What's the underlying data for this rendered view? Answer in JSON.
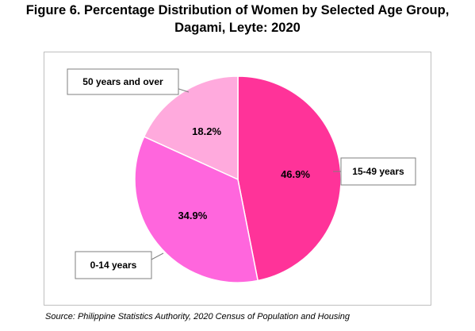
{
  "title": {
    "line1": "Figure 6. Percentage Distribution of Women by Selected Age Group,",
    "line2": "Dagami, Leyte: 2020"
  },
  "source": "Source: Philippine Statistics Authority, 2020 Census of Population and Housing",
  "chart_data": {
    "type": "pie",
    "title": "Figure 6. Percentage Distribution of Women by Selected Age Group, Dagami, Leyte: 2020",
    "legend": "none",
    "slices": [
      {
        "label": "15-49 years",
        "value": 46.9,
        "display": "46.9%",
        "color": "#ff3399"
      },
      {
        "label": "0-14 years",
        "value": 34.9,
        "display": "34.9%",
        "color": "#ff66dd"
      },
      {
        "label": "50 years and over",
        "value": 18.2,
        "display": "18.2%",
        "color": "#ffaadd"
      }
    ]
  }
}
